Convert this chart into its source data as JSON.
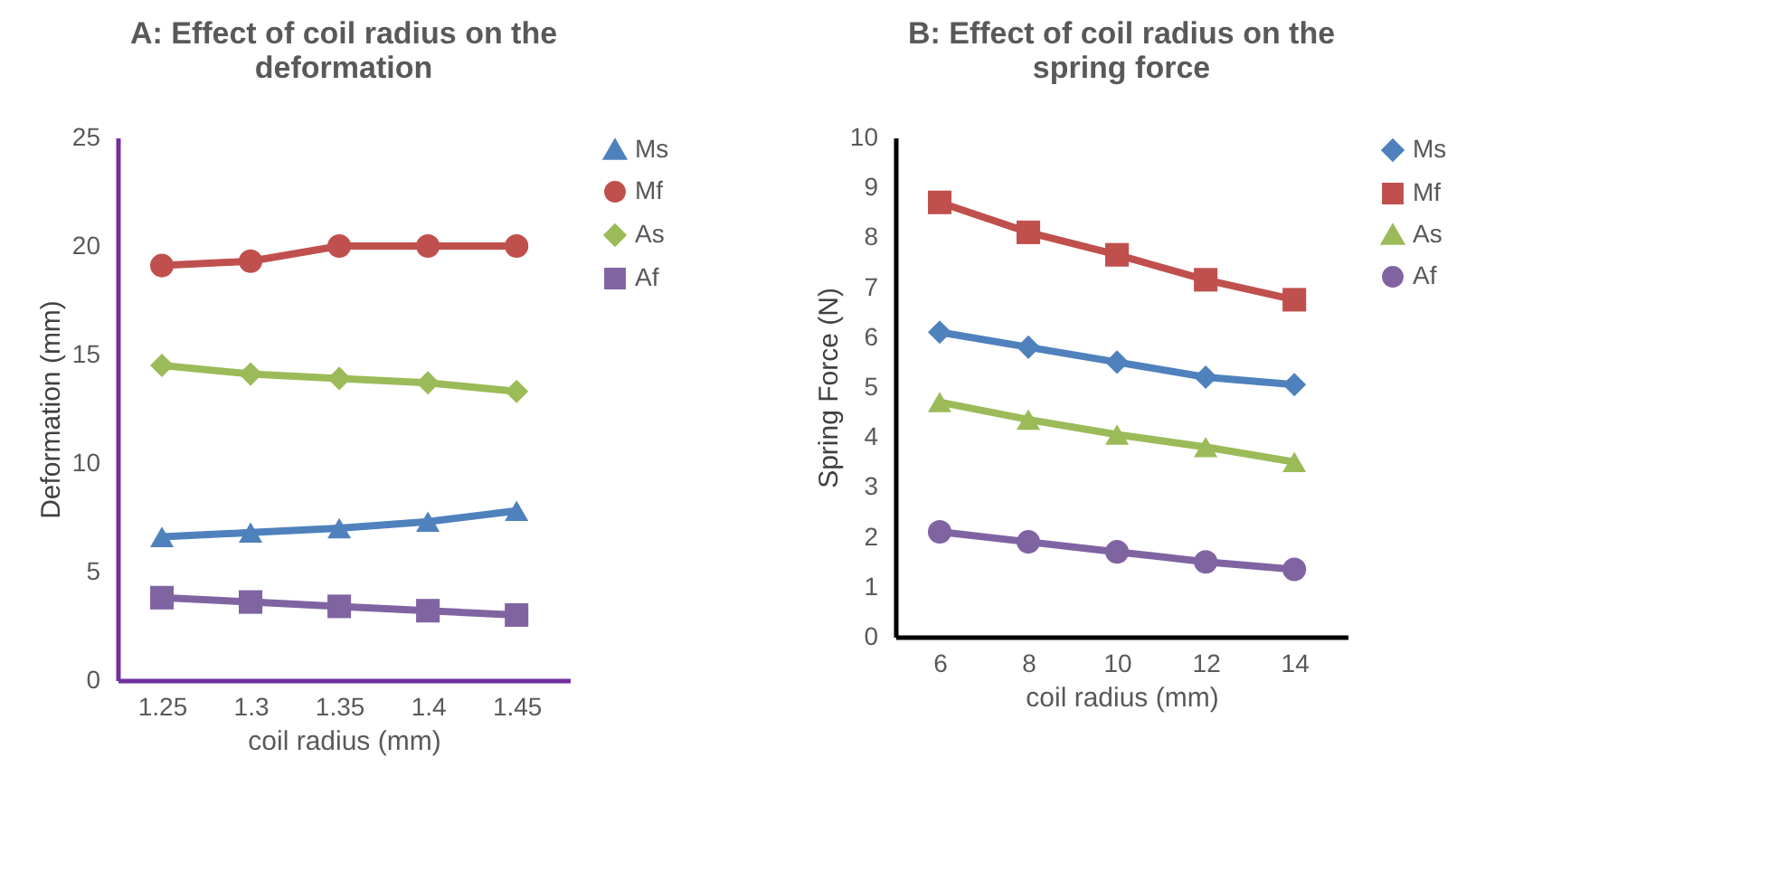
{
  "chart_data": [
    {
      "type": "line",
      "title": "A:  Effect of coil radius on the deformation",
      "xlabel": "coil radius (mm)",
      "ylabel": "Deformation (mm)",
      "categories": [
        "1.25",
        "1.3",
        "1.35",
        "1.4",
        "1.45"
      ],
      "ylim": [
        0,
        25
      ],
      "yticks": [
        0,
        5,
        10,
        15,
        20,
        25
      ],
      "grid": false,
      "legend": "right",
      "series": [
        {
          "name": "Ms",
          "color": "#4f81bd",
          "marker": "triangle",
          "values": [
            6.6,
            6.8,
            7.0,
            7.3,
            7.8
          ]
        },
        {
          "name": "Mf",
          "color": "#c0504d",
          "marker": "circle",
          "values": [
            19.1,
            19.3,
            20.0,
            20.0,
            20.0
          ]
        },
        {
          "name": "As",
          "color": "#9bbb59",
          "marker": "diamond",
          "values": [
            14.5,
            14.1,
            13.9,
            13.7,
            13.3
          ]
        },
        {
          "name": "Af",
          "color": "#8064a2",
          "marker": "square",
          "values": [
            3.8,
            3.6,
            3.4,
            3.2,
            3.0
          ]
        }
      ]
    },
    {
      "type": "line",
      "title": "B: Effect of coil radius on the spring force",
      "xlabel": "coil radius (mm)",
      "ylabel": "Spring Force (N)",
      "categories": [
        "6",
        "8",
        "10",
        "12",
        "14"
      ],
      "ylim": [
        0,
        10
      ],
      "yticks": [
        0,
        1,
        2,
        3,
        4,
        5,
        6,
        7,
        8,
        9,
        10
      ],
      "grid": false,
      "legend": "right",
      "series": [
        {
          "name": "Ms",
          "color": "#4f81bd",
          "marker": "diamond",
          "values": [
            6.1,
            5.8,
            5.5,
            5.2,
            5.05
          ]
        },
        {
          "name": "Mf",
          "color": "#c0504d",
          "marker": "square",
          "values": [
            8.7,
            8.1,
            7.65,
            7.15,
            6.75
          ]
        },
        {
          "name": "As",
          "color": "#9bbb59",
          "marker": "triangle",
          "values": [
            4.7,
            4.35,
            4.05,
            3.8,
            3.5
          ]
        },
        {
          "name": "Af",
          "color": "#8064a2",
          "marker": "circle",
          "values": [
            2.1,
            1.9,
            1.7,
            1.5,
            1.35
          ]
        }
      ]
    }
  ]
}
